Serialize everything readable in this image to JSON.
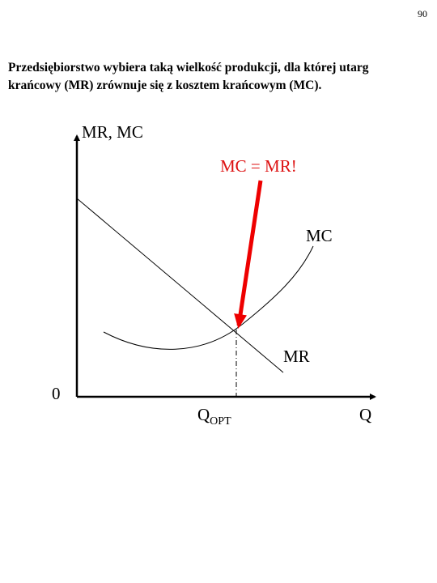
{
  "page": {
    "number": "90"
  },
  "statement": {
    "line1": "Przedsiębiorstwo wybiera taką wielkość produkcji, dla której utarg",
    "line2": "krańcowy (MR) zrównuje się z kosztem krańcowym (MC)."
  },
  "diagram": {
    "y_axis_label": "MR, MC",
    "x_axis_label": "Q",
    "origin_label": "0",
    "annotation": "MC = MR!",
    "mc_label": "MC",
    "mr_label": "MR",
    "q_opt_main": "Q",
    "q_opt_sub": "OPT",
    "colors": {
      "annotation": "#dd1111",
      "arrow": "#ee0000",
      "lines": "#000000"
    }
  }
}
